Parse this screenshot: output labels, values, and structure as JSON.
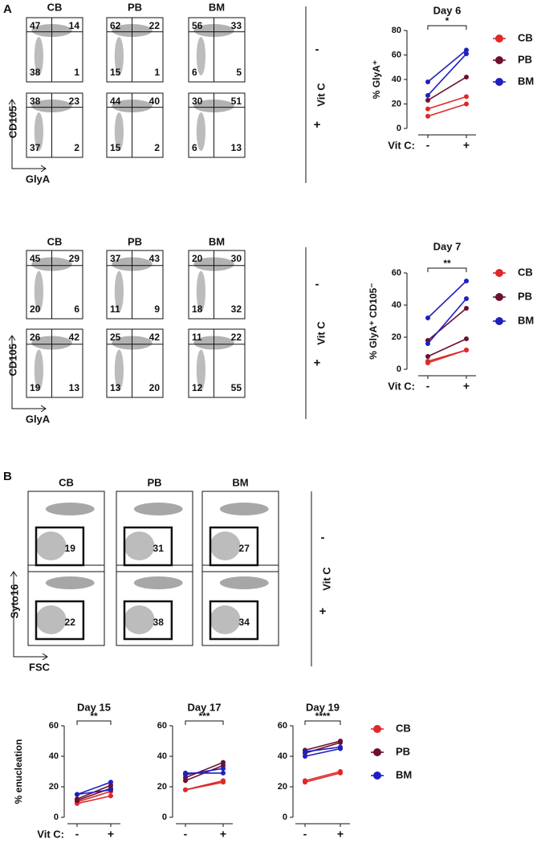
{
  "panel_labels": [
    "A",
    "B"
  ],
  "flow_a1": {
    "columns": [
      "CB",
      "PB",
      "BM"
    ],
    "rows": [
      "-",
      "+"
    ],
    "row_group": "Vit C",
    "y_axis": "CD105",
    "x_axis": "GlyA",
    "quadrants": [
      [
        [
          47,
          14,
          38,
          1
        ],
        [
          62,
          22,
          15,
          1
        ],
        [
          56,
          33,
          6,
          5
        ]
      ],
      [
        [
          38,
          23,
          37,
          2
        ],
        [
          44,
          40,
          15,
          2
        ],
        [
          30,
          51,
          6,
          13
        ]
      ]
    ]
  },
  "flow_a2": {
    "columns": [
      "CB",
      "PB",
      "BM"
    ],
    "rows": [
      "-",
      "+"
    ],
    "row_group": "Vit C",
    "y_axis": "CD105",
    "x_axis": "GlyA",
    "quadrants": [
      [
        [
          45,
          29,
          20,
          6
        ],
        [
          37,
          43,
          11,
          9
        ],
        [
          20,
          30,
          18,
          32
        ]
      ],
      [
        [
          26,
          42,
          19,
          13
        ],
        [
          25,
          42,
          13,
          20
        ],
        [
          11,
          22,
          12,
          55
        ]
      ]
    ]
  },
  "flow_b": {
    "columns": [
      "CB",
      "PB",
      "BM"
    ],
    "rows": [
      "-",
      "+"
    ],
    "row_group": "Vit C",
    "y_axis": "Syto16",
    "x_axis": "FSC",
    "gates": [
      [
        19,
        31,
        27
      ],
      [
        22,
        38,
        34
      ]
    ]
  },
  "chart_data": [
    {
      "type": "line",
      "title": "Day 6",
      "y_label": "% GlyA⁺",
      "x_label": "Vit C:",
      "categories": [
        "-",
        "+"
      ],
      "significance": "*",
      "ylim": [
        0,
        80
      ],
      "yticks": [
        0,
        20,
        40,
        60,
        80
      ],
      "legend": true,
      "series": [
        {
          "name": "CB",
          "color": "#e02828",
          "values": [
            [
              10,
              20
            ],
            [
              16,
              26
            ]
          ]
        },
        {
          "name": "PB",
          "color": "#6b1030",
          "values": [
            [
              23,
              42
            ]
          ]
        },
        {
          "name": "BM",
          "color": "#1f1fc0",
          "values": [
            [
              27,
              61
            ],
            [
              38,
              64
            ]
          ]
        }
      ]
    },
    {
      "type": "line",
      "title": "Day 7",
      "y_label": "% GlyA⁺ CD105⁻",
      "x_label": "Vit C:",
      "categories": [
        "-",
        "+"
      ],
      "significance": "**",
      "ylim": [
        0,
        60
      ],
      "yticks": [
        0,
        20,
        40,
        60
      ],
      "legend": true,
      "series": [
        {
          "name": "CB",
          "color": "#e02828",
          "values": [
            [
              5,
              12
            ],
            [
              4,
              12
            ]
          ]
        },
        {
          "name": "PB",
          "color": "#6b1030",
          "values": [
            [
              18,
              38
            ],
            [
              8,
              19
            ]
          ]
        },
        {
          "name": "BM",
          "color": "#1f1fc0",
          "values": [
            [
              32,
              55
            ],
            [
              16,
              44
            ]
          ]
        }
      ]
    },
    {
      "type": "line",
      "title": "Day 15",
      "y_label": "% enucleation",
      "x_label": "Vit C:",
      "categories": [
        "-",
        "+"
      ],
      "significance": "**",
      "ylim": [
        0,
        60
      ],
      "yticks": [
        0,
        20,
        40,
        60
      ],
      "legend": false,
      "series": [
        {
          "color": "#e02828",
          "values": [
            [
              9,
              14
            ],
            [
              10,
              17
            ]
          ]
        },
        {
          "color": "#6b1030",
          "values": [
            [
              11,
              19
            ],
            [
              12,
              21
            ]
          ]
        },
        {
          "color": "#1f1fc0",
          "values": [
            [
              15,
              23
            ],
            [
              15,
              18
            ]
          ]
        }
      ]
    },
    {
      "type": "line",
      "title": "Day 17",
      "categories": [
        "-",
        "+"
      ],
      "significance": "***",
      "ylim": [
        0,
        60
      ],
      "yticks": [
        0,
        20,
        40,
        60
      ],
      "legend": false,
      "series": [
        {
          "color": "#e02828",
          "values": [
            [
              18,
              23
            ],
            [
              18,
              24
            ]
          ]
        },
        {
          "color": "#6b1030",
          "values": [
            [
              26,
              36
            ],
            [
              24,
              34
            ]
          ]
        },
        {
          "color": "#1f1fc0",
          "values": [
            [
              29,
              29
            ],
            [
              28,
              32
            ]
          ]
        }
      ]
    },
    {
      "type": "line",
      "title": "Day 19",
      "categories": [
        "-",
        "+"
      ],
      "significance": "****",
      "ylim": [
        0,
        60
      ],
      "yticks": [
        0,
        20,
        40,
        60
      ],
      "legend": true,
      "series": [
        {
          "name": "CB",
          "color": "#e02828",
          "values": [
            [
              23,
              29
            ],
            [
              24,
              30
            ]
          ]
        },
        {
          "name": "PB",
          "color": "#6b1030",
          "values": [
            [
              44,
              50
            ],
            [
              42,
              49
            ]
          ]
        },
        {
          "name": "BM",
          "color": "#1f1fc0",
          "values": [
            [
              40,
              45
            ],
            [
              43,
              46
            ]
          ]
        }
      ]
    }
  ]
}
